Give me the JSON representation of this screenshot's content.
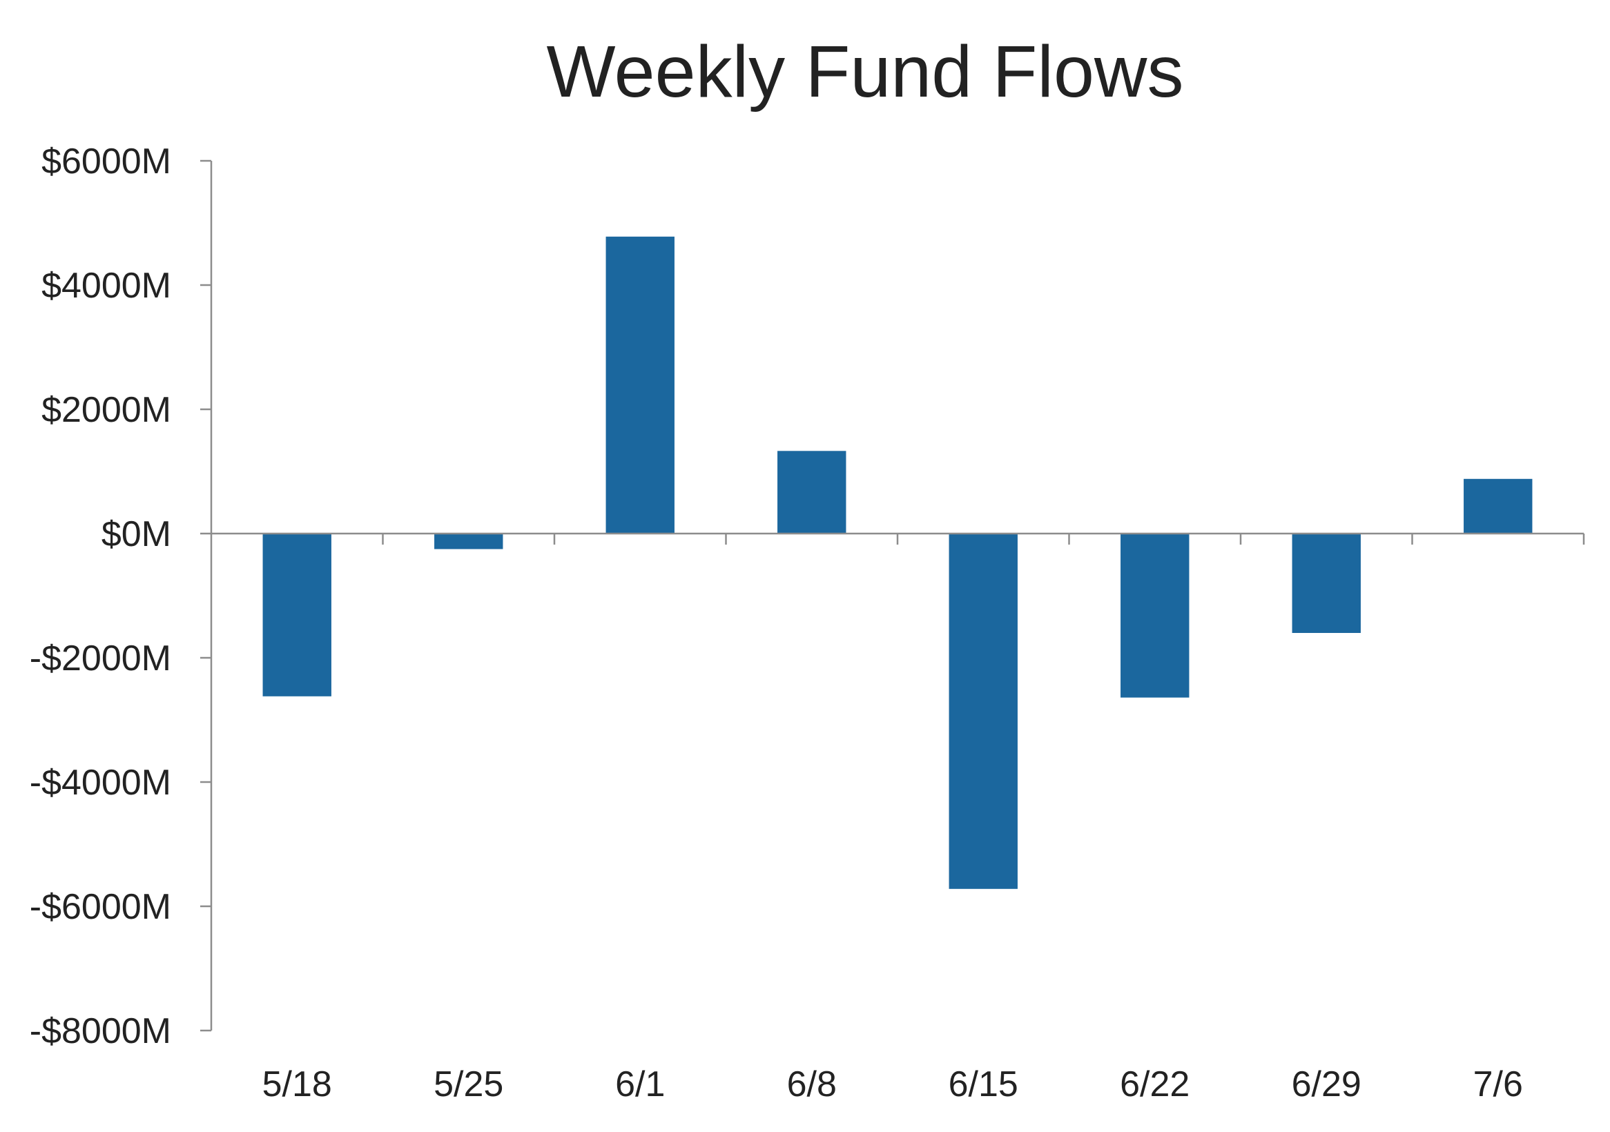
{
  "chart_data": {
    "type": "bar",
    "title": "Weekly Fund Flows",
    "xlabel": "",
    "ylabel": "",
    "categories": [
      "5/18",
      "5/25",
      "6/1",
      "6/8",
      "6/15",
      "6/22",
      "6/29",
      "7/6"
    ],
    "values": [
      -2620,
      -250,
      4780,
      1330,
      -5720,
      -2640,
      -1600,
      880
    ],
    "ylim": [
      -8000,
      6000
    ],
    "y_ticks": [
      6000,
      4000,
      2000,
      0,
      -2000,
      -4000,
      -6000,
      -8000
    ],
    "y_tick_labels": [
      "$6000M",
      "$4000M",
      "$2000M",
      "$0M",
      "-$2000M",
      "-$4000M",
      "-$6000M",
      "-$8000M"
    ],
    "grid": false,
    "legend": "none",
    "bar_color": "#1b679e",
    "axis_color": "#8c8c8c",
    "text_color": "#222222"
  }
}
